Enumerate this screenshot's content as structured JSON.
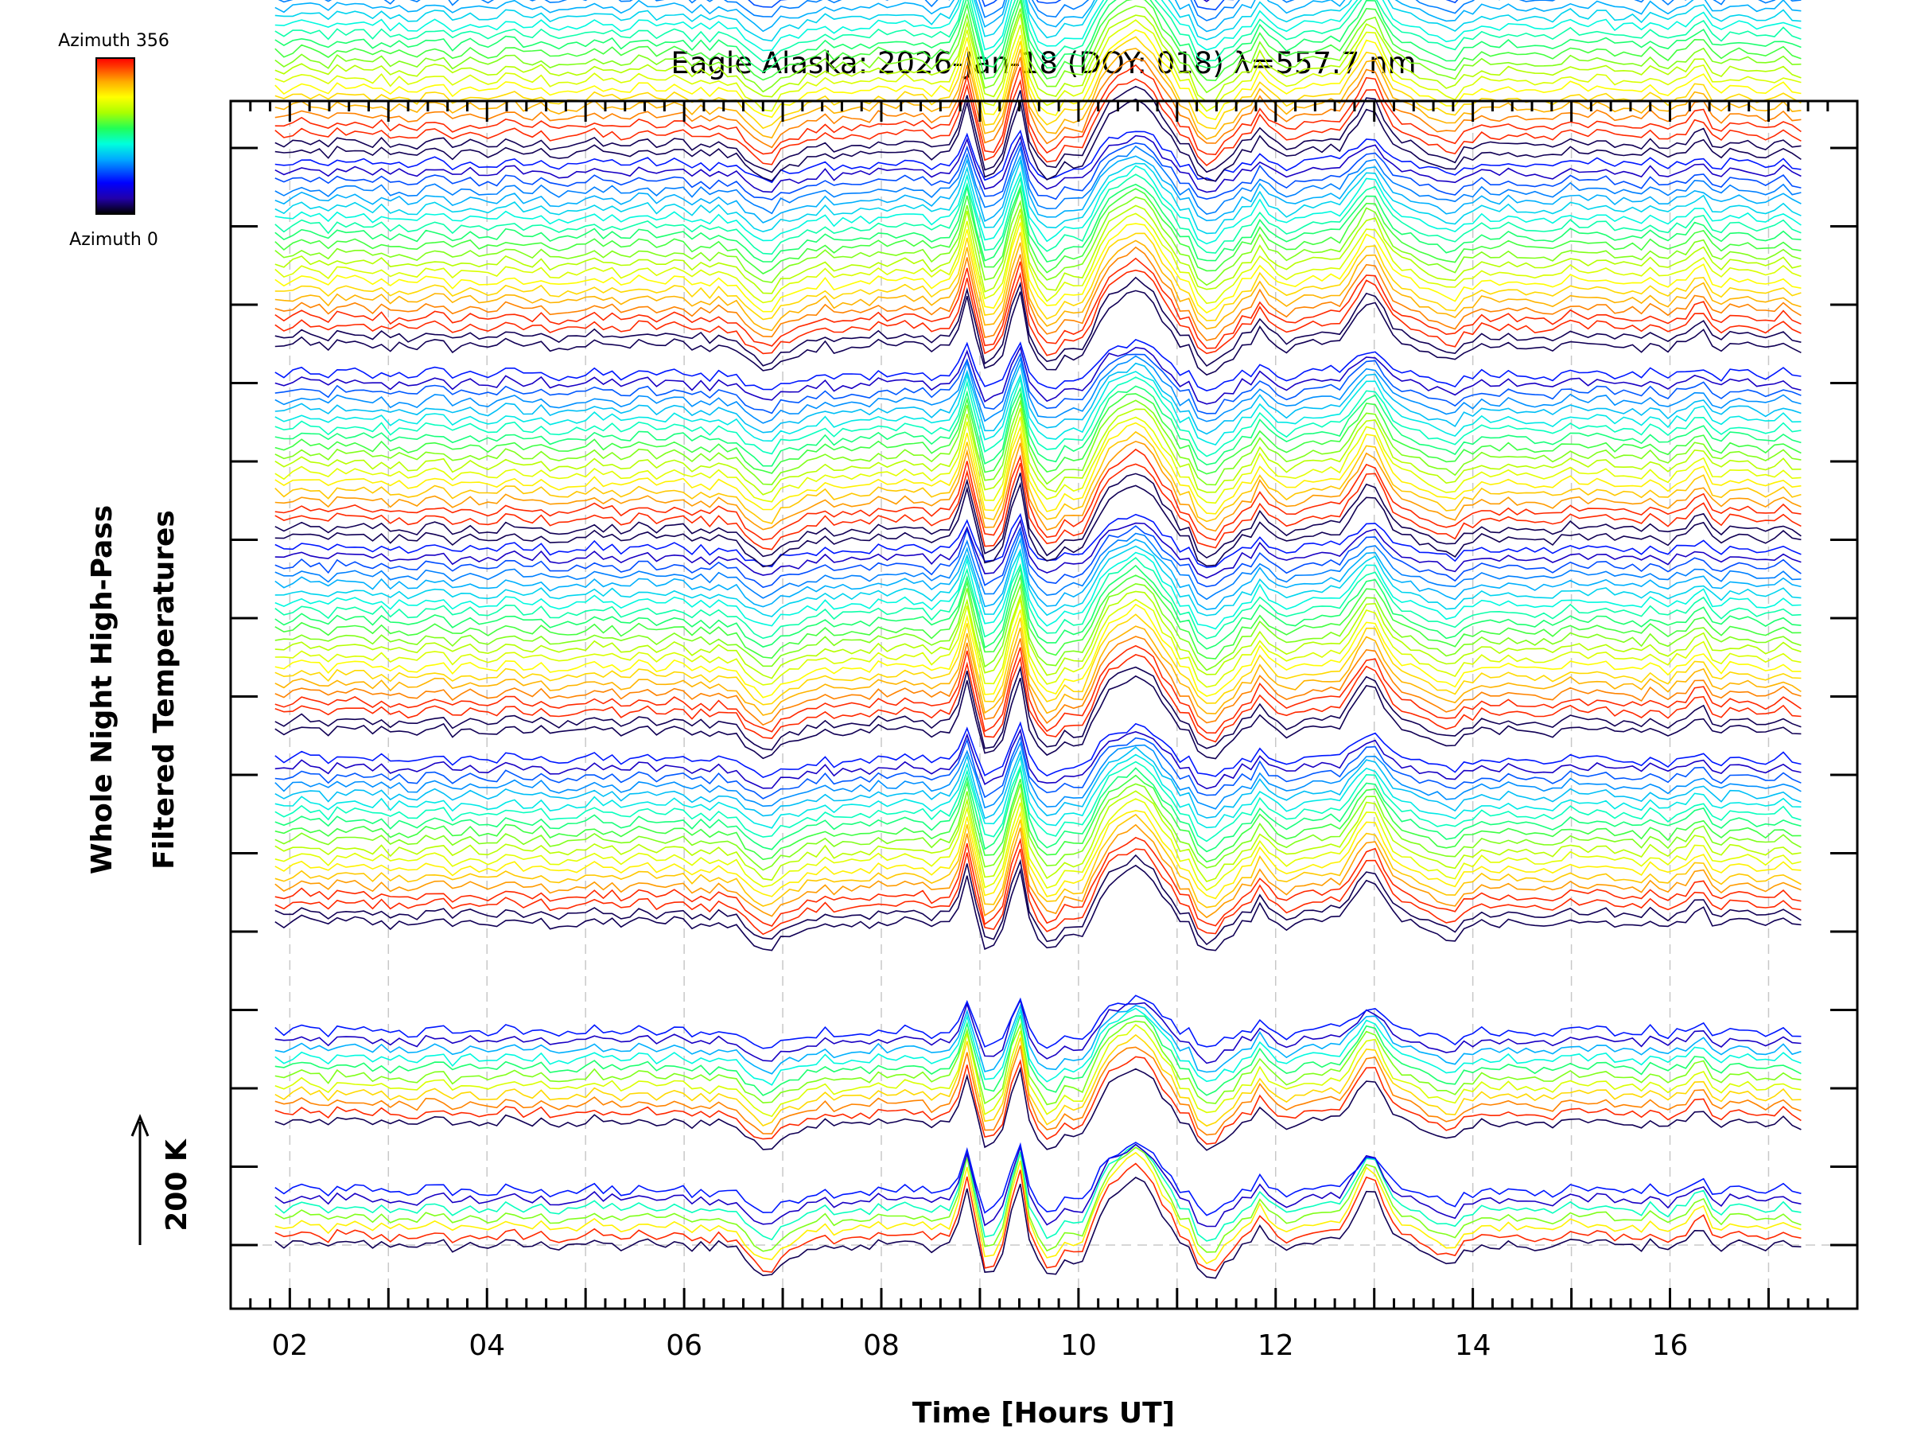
{
  "chart_data": {
    "type": "line",
    "title": "Eagle Alaska: 2026-Jan-18 (DOY: 018) λ=557.7 nm",
    "xlabel": "Time [Hours UT]",
    "ylabel_line1": "Whole Night High-Pass",
    "ylabel_line2": "Filtered Temperatures",
    "scale_label": "200 K",
    "x_range": [
      1.4,
      17.9
    ],
    "x_ticks": [
      2,
      4,
      6,
      8,
      10,
      12,
      14,
      16
    ],
    "x_tick_labels": [
      "02",
      "04",
      "06",
      "08",
      "10",
      "12",
      "14",
      "16"
    ],
    "x_data_range": [
      1.85,
      17.4
    ],
    "colorbar": {
      "top_label": "Azimuth 356",
      "bottom_label": "Azimuth 0",
      "colormap": [
        "#000000",
        "#2200aa",
        "#0000ff",
        "#00aaff",
        "#00ffdd",
        "#22ff55",
        "#aaff00",
        "#ffff00",
        "#ffaa00",
        "#ff3300",
        "#ff0000"
      ]
    },
    "series_count": 140,
    "group_sizes": [
      7,
      11,
      19,
      21,
      19,
      21,
      21,
      21
    ],
    "group_offsets_traces": [
      0,
      1.75,
      4.6,
      7.35,
      10.1,
      12.85,
      15.6,
      18.3
    ],
    "trace_spacing_traces": 0.13,
    "event_features": [
      {
        "time": 8.87,
        "amplitude": 1.6,
        "width": 0.09
      },
      {
        "time": 9.1,
        "amplitude": -1.1,
        "width": 0.1
      },
      {
        "time": 9.38,
        "amplitude": 2.0,
        "width": 0.07
      },
      {
        "time": 9.72,
        "amplitude": -1.0,
        "width": 0.12
      },
      {
        "time": 10.0,
        "amplitude": -0.8,
        "width": 0.1
      },
      {
        "time": 10.55,
        "amplitude": 1.9,
        "width": 0.34
      },
      {
        "time": 11.35,
        "amplitude": -0.9,
        "width": 0.22
      },
      {
        "time": 11.85,
        "amplitude": 0.5,
        "width": 0.1
      },
      {
        "time": 12.95,
        "amplitude": 1.7,
        "width": 0.18
      },
      {
        "time": 13.7,
        "amplitude": -0.6,
        "width": 0.2
      },
      {
        "time": 16.3,
        "amplitude": 0.7,
        "width": 0.1
      },
      {
        "time": 6.85,
        "amplitude": -0.9,
        "width": 0.25
      }
    ]
  }
}
